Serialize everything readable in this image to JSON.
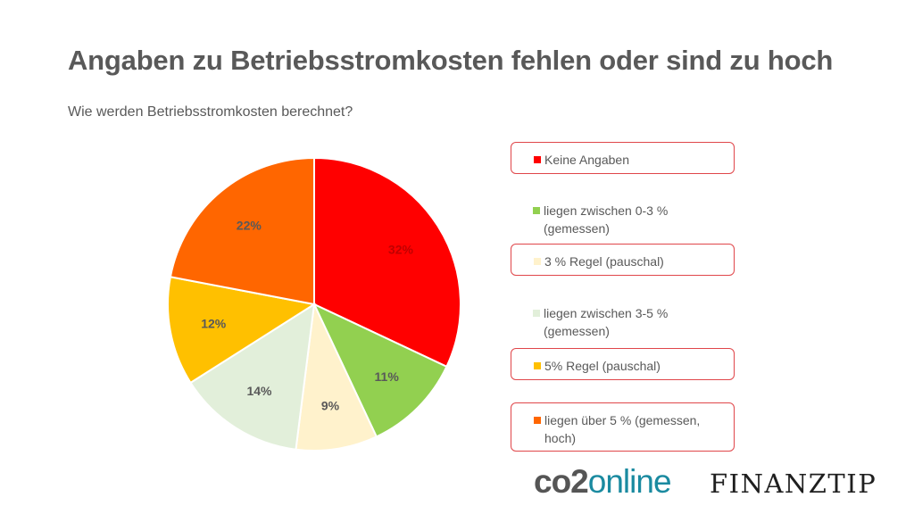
{
  "title": "Angaben zu Betriebsstromkosten fehlen oder sind zu hoch",
  "subtitle": "Wie werden Betriebsstromkosten berechnet?",
  "chart_data": {
    "type": "pie",
    "title": "",
    "legend_placement": "right",
    "slices": [
      {
        "label": "Keine Angaben",
        "value": 32,
        "display": "32%",
        "color": "#ff0000"
      },
      {
        "label": "liegen zwischen 0-3 % (gemessen)",
        "value": 11,
        "display": "11%",
        "color": "#92d050"
      },
      {
        "label": "3 % Regel (pauschal)",
        "value": 9,
        "display": "9%",
        "color": "#fff2cc"
      },
      {
        "label": "liegen zwischen 3-5 % (gemessen)",
        "value": 14,
        "display": "14%",
        "color": "#e2efda"
      },
      {
        "label": "5% Regel (pauschal)",
        "value": 12,
        "display": "12%",
        "color": "#ffc000"
      },
      {
        "label": "liegen über 5 % (gemessen, hoch)",
        "value": 22,
        "display": "22%",
        "color": "#ff6600"
      }
    ]
  },
  "legend": {
    "items": [
      {
        "label": "Keine Angaben",
        "highlighted": true
      },
      {
        "label": "liegen zwischen 0-3 % (gemessen)",
        "highlighted": false
      },
      {
        "label": "3 % Regel (pauschal)",
        "highlighted": true
      },
      {
        "label": "liegen zwischen 3-5 % (gemessen)",
        "highlighted": false
      },
      {
        "label": "5% Regel (pauschal)",
        "highlighted": true
      },
      {
        "label": "liegen über 5 % (gemessen, hoch)",
        "highlighted": true
      }
    ]
  },
  "logos": {
    "co2online_part1": "co2",
    "co2online_part2": "online",
    "finanztip": "FINANZTIP"
  }
}
